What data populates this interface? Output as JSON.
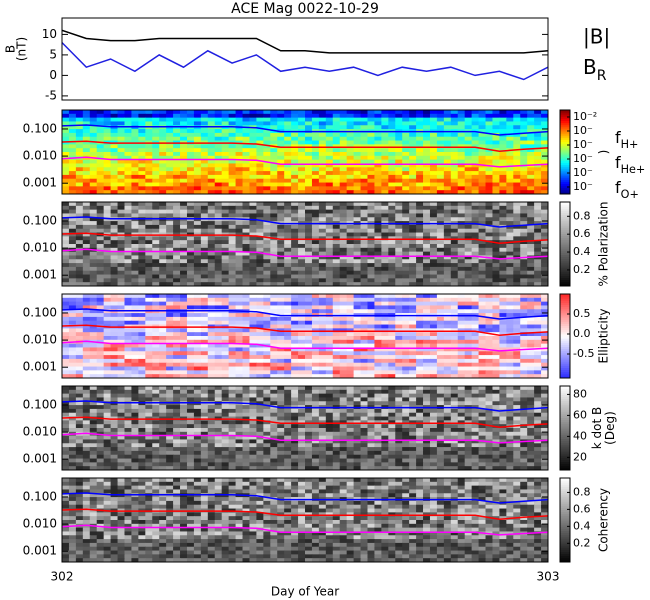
{
  "title": "ACE Mag 0022-10-29",
  "chart_data": [
    {
      "type": "line",
      "xlim": [
        302,
        303
      ],
      "ylim": [
        -6,
        14
      ],
      "yticks": [
        -5,
        0,
        5,
        10
      ],
      "ylabel": [
        "B",
        "(nT)"
      ],
      "x": [
        302,
        302.05,
        302.1,
        302.15,
        302.2,
        302.25,
        302.3,
        302.35,
        302.4,
        302.45,
        302.5,
        302.55,
        302.6,
        302.65,
        302.7,
        302.75,
        302.8,
        302.85,
        302.9,
        302.95,
        303
      ],
      "series": [
        {
          "name": "|B|",
          "color": "#000000",
          "values": [
            11,
            9,
            8.5,
            8.5,
            9,
            9,
            9,
            9,
            9,
            6,
            6,
            5.5,
            5.5,
            5.5,
            5.5,
            5.5,
            5.5,
            5.5,
            5.5,
            5.5,
            6
          ]
        },
        {
          "name": "BR",
          "color": "#2020e0",
          "values": [
            8,
            2,
            4,
            1,
            5,
            2,
            6,
            3,
            5,
            1,
            2,
            1,
            2,
            0,
            2,
            1,
            2,
            0,
            1,
            -1,
            2
          ]
        }
      ]
    },
    {
      "type": "spectrogram",
      "cmap": "jet",
      "log": true,
      "xlim": [
        302,
        303
      ],
      "ylim": [
        0.0004,
        0.5
      ],
      "yticks": [
        {
          "value": 0.1,
          "label": "0.100"
        },
        {
          "value": 0.01,
          "label": "0.010"
        },
        {
          "value": 0.001,
          "label": "0.001"
        }
      ],
      "clim": [
        -7.5,
        -1.5
      ],
      "cticks": [
        {
          "value": -2,
          "label": "10⁻²"
        },
        {
          "value": -3,
          "label": "10⁻"
        },
        {
          "value": -4,
          "label": "10⁻"
        },
        {
          "value": -5,
          "label": "10⁻"
        },
        {
          "value": -6,
          "label": "10⁻"
        },
        {
          "value": -7,
          "label": "10⁻"
        }
      ],
      "clabel": [
        ")"
      ],
      "x": [
        302,
        302.05,
        302.1,
        302.15,
        302.2,
        302.25,
        302.3,
        302.35,
        302.4,
        302.45,
        302.5,
        302.55,
        302.6,
        302.65,
        302.7,
        302.75,
        302.8,
        302.85,
        302.9,
        302.95,
        303
      ],
      "series": [
        {
          "name": "fH+",
          "color": "#0000ff",
          "values": [
            0.13,
            0.14,
            0.12,
            0.12,
            0.12,
            0.12,
            0.12,
            0.12,
            0.11,
            0.08,
            0.08,
            0.08,
            0.08,
            0.08,
            0.08,
            0.08,
            0.08,
            0.08,
            0.06,
            0.07,
            0.08
          ]
        },
        {
          "name": "fHe+",
          "color": "#ff0000",
          "values": [
            0.033,
            0.035,
            0.03,
            0.03,
            0.03,
            0.03,
            0.03,
            0.03,
            0.028,
            0.021,
            0.021,
            0.021,
            0.021,
            0.021,
            0.021,
            0.021,
            0.021,
            0.021,
            0.015,
            0.018,
            0.02
          ]
        },
        {
          "name": "fO+",
          "color": "#ff00ff",
          "values": [
            0.008,
            0.009,
            0.0075,
            0.0075,
            0.0075,
            0.0075,
            0.0075,
            0.0075,
            0.007,
            0.005,
            0.005,
            0.005,
            0.005,
            0.005,
            0.005,
            0.005,
            0.005,
            0.005,
            0.004,
            0.0045,
            0.005
          ]
        }
      ]
    },
    {
      "type": "spectrogram",
      "cmap": "gray",
      "log": true,
      "xlim": [
        302,
        303
      ],
      "ylim": [
        0.0004,
        0.5
      ],
      "yticks": [
        {
          "value": 0.1,
          "label": "0.100"
        },
        {
          "value": 0.01,
          "label": "0.010"
        },
        {
          "value": 0.001,
          "label": "0.001"
        }
      ],
      "clim": [
        0.02,
        0.96
      ],
      "cticks": [
        0.2,
        0.4,
        0.6,
        0.8
      ],
      "clabel": [
        "% Polarization"
      ],
      "x": [
        302,
        302.05,
        302.1,
        302.15,
        302.2,
        302.25,
        302.3,
        302.35,
        302.4,
        302.45,
        302.5,
        302.55,
        302.6,
        302.65,
        302.7,
        302.75,
        302.8,
        302.85,
        302.9,
        302.95,
        303
      ],
      "series": [
        {
          "color": "#0000ff",
          "values": [
            0.13,
            0.14,
            0.12,
            0.12,
            0.12,
            0.12,
            0.12,
            0.12,
            0.11,
            0.08,
            0.08,
            0.08,
            0.08,
            0.08,
            0.08,
            0.08,
            0.08,
            0.08,
            0.06,
            0.07,
            0.08
          ]
        },
        {
          "color": "#ff0000",
          "values": [
            0.033,
            0.035,
            0.03,
            0.03,
            0.03,
            0.03,
            0.03,
            0.03,
            0.028,
            0.021,
            0.021,
            0.021,
            0.021,
            0.021,
            0.021,
            0.021,
            0.021,
            0.021,
            0.015,
            0.018,
            0.02
          ]
        },
        {
          "color": "#ff00ff",
          "values": [
            0.008,
            0.009,
            0.0075,
            0.0075,
            0.0075,
            0.0075,
            0.0075,
            0.0075,
            0.007,
            0.005,
            0.005,
            0.005,
            0.005,
            0.005,
            0.005,
            0.005,
            0.005,
            0.005,
            0.004,
            0.0045,
            0.005
          ]
        }
      ]
    },
    {
      "type": "spectrogram",
      "cmap": "bwr",
      "log": true,
      "xlim": [
        302,
        303
      ],
      "ylim": [
        0.0004,
        0.5
      ],
      "yticks": [
        {
          "value": 0.1,
          "label": "0.100"
        },
        {
          "value": 0.01,
          "label": "0.010"
        },
        {
          "value": 0.001,
          "label": "0.001"
        }
      ],
      "clim": [
        -1.1,
        1.0
      ],
      "cticks": [
        0.5,
        {
          "value": 0,
          "label": "0.0"
        },
        -0.5
      ],
      "clabel": [
        "Ellipticity"
      ],
      "x": [
        302,
        302.05,
        302.1,
        302.15,
        302.2,
        302.25,
        302.3,
        302.35,
        302.4,
        302.45,
        302.5,
        302.55,
        302.6,
        302.65,
        302.7,
        302.75,
        302.8,
        302.85,
        302.9,
        302.95,
        303
      ],
      "series": [
        {
          "color": "#0000ff",
          "values": [
            0.13,
            0.14,
            0.12,
            0.12,
            0.12,
            0.12,
            0.12,
            0.12,
            0.11,
            0.08,
            0.08,
            0.08,
            0.08,
            0.08,
            0.08,
            0.08,
            0.08,
            0.08,
            0.06,
            0.07,
            0.08
          ]
        },
        {
          "color": "#ff0000",
          "values": [
            0.033,
            0.035,
            0.03,
            0.03,
            0.03,
            0.03,
            0.03,
            0.03,
            0.028,
            0.021,
            0.021,
            0.021,
            0.021,
            0.021,
            0.021,
            0.021,
            0.021,
            0.021,
            0.015,
            0.018,
            0.02
          ]
        },
        {
          "color": "#ff00ff",
          "values": [
            0.008,
            0.009,
            0.0075,
            0.0075,
            0.0075,
            0.0075,
            0.0075,
            0.0075,
            0.007,
            0.005,
            0.005,
            0.005,
            0.005,
            0.005,
            0.005,
            0.005,
            0.005,
            0.005,
            0.004,
            0.0045,
            0.005
          ]
        }
      ]
    },
    {
      "type": "spectrogram",
      "cmap": "gray",
      "log": true,
      "xlim": [
        302,
        303
      ],
      "ylim": [
        0.0004,
        0.5
      ],
      "yticks": [
        {
          "value": 0.1,
          "label": "0.100"
        },
        {
          "value": 0.01,
          "label": "0.010"
        },
        {
          "value": 0.001,
          "label": "0.001"
        }
      ],
      "clim": [
        8,
        88
      ],
      "cticks": [
        20,
        40,
        60,
        80
      ],
      "clabel": [
        "k dot B",
        "(Deg)"
      ],
      "x": [
        302,
        302.05,
        302.1,
        302.15,
        302.2,
        302.25,
        302.3,
        302.35,
        302.4,
        302.45,
        302.5,
        302.55,
        302.6,
        302.65,
        302.7,
        302.75,
        302.8,
        302.85,
        302.9,
        302.95,
        303
      ],
      "series": [
        {
          "color": "#0000ff",
          "values": [
            0.13,
            0.14,
            0.12,
            0.12,
            0.12,
            0.12,
            0.12,
            0.12,
            0.11,
            0.08,
            0.08,
            0.08,
            0.08,
            0.08,
            0.08,
            0.08,
            0.08,
            0.08,
            0.06,
            0.07,
            0.08
          ]
        },
        {
          "color": "#ff0000",
          "values": [
            0.033,
            0.035,
            0.03,
            0.03,
            0.03,
            0.03,
            0.03,
            0.03,
            0.028,
            0.021,
            0.021,
            0.021,
            0.021,
            0.021,
            0.021,
            0.021,
            0.021,
            0.021,
            0.015,
            0.018,
            0.02
          ]
        },
        {
          "color": "#ff00ff",
          "values": [
            0.008,
            0.009,
            0.0075,
            0.0075,
            0.0075,
            0.0075,
            0.0075,
            0.0075,
            0.007,
            0.005,
            0.005,
            0.005,
            0.005,
            0.005,
            0.005,
            0.005,
            0.005,
            0.005,
            0.004,
            0.0045,
            0.005
          ]
        }
      ]
    },
    {
      "type": "spectrogram",
      "cmap": "gray",
      "log": true,
      "xlim": [
        302,
        303
      ],
      "ylim": [
        0.0004,
        0.5
      ],
      "yticks": [
        {
          "value": 0.1,
          "label": "0.100"
        },
        {
          "value": 0.01,
          "label": "0.010"
        },
        {
          "value": 0.001,
          "label": "0.001"
        }
      ],
      "clim": [
        -0.02,
        0.97
      ],
      "cticks": [
        0.2,
        0.4,
        0.6,
        0.8
      ],
      "clabel": [
        "Coherency"
      ],
      "xticks": [
        302,
        303
      ],
      "xlabel": "Day of Year",
      "x": [
        302,
        302.05,
        302.1,
        302.15,
        302.2,
        302.25,
        302.3,
        302.35,
        302.4,
        302.45,
        302.5,
        302.55,
        302.6,
        302.65,
        302.7,
        302.75,
        302.8,
        302.85,
        302.9,
        302.95,
        303
      ],
      "series": [
        {
          "color": "#0000ff",
          "values": [
            0.13,
            0.14,
            0.12,
            0.12,
            0.12,
            0.12,
            0.12,
            0.12,
            0.11,
            0.08,
            0.08,
            0.08,
            0.08,
            0.08,
            0.08,
            0.08,
            0.08,
            0.08,
            0.06,
            0.07,
            0.08
          ]
        },
        {
          "color": "#ff0000",
          "values": [
            0.033,
            0.035,
            0.03,
            0.03,
            0.03,
            0.03,
            0.03,
            0.03,
            0.028,
            0.021,
            0.021,
            0.021,
            0.021,
            0.021,
            0.021,
            0.021,
            0.021,
            0.021,
            0.015,
            0.018,
            0.02
          ]
        },
        {
          "color": "#ff00ff",
          "values": [
            0.008,
            0.009,
            0.0075,
            0.0075,
            0.0075,
            0.0075,
            0.0075,
            0.0075,
            0.007,
            0.005,
            0.005,
            0.005,
            0.005,
            0.005,
            0.005,
            0.005,
            0.005,
            0.005,
            0.004,
            0.0045,
            0.005
          ]
        }
      ]
    }
  ]
}
